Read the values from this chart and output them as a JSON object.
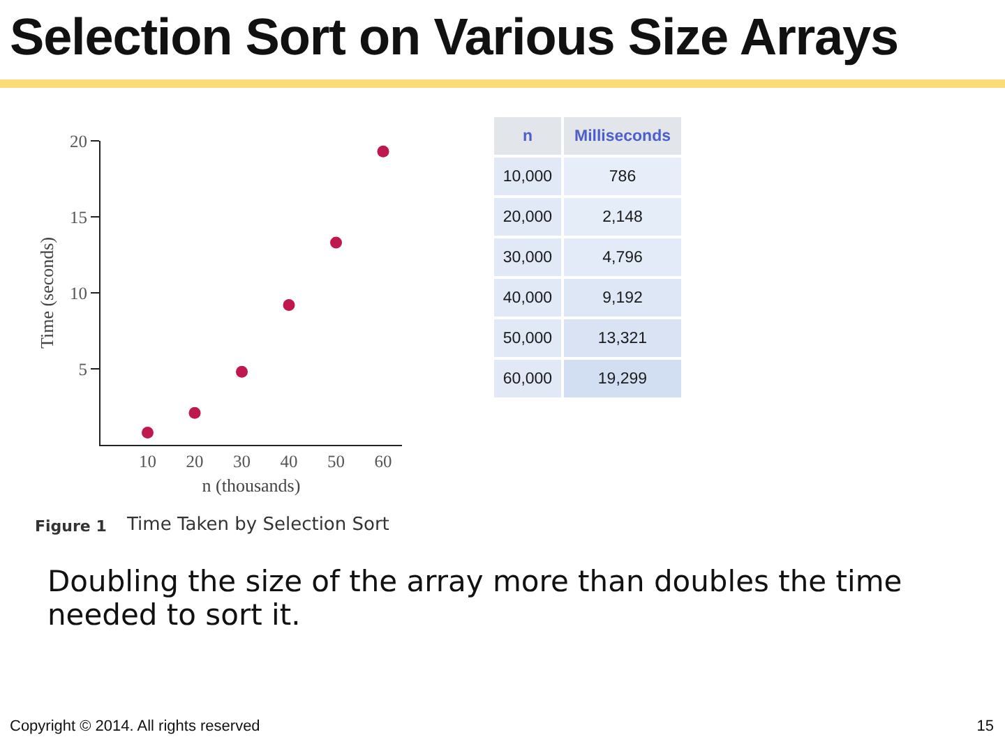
{
  "chart_data": [
    {
      "type": "scatter",
      "title": "Selection Sort on Various Size Arrays",
      "xlabel": "n (thousands)",
      "ylabel": "Time (seconds)",
      "x": [
        10,
        20,
        30,
        40,
        50,
        60
      ],
      "values": [
        0.8,
        2.1,
        4.8,
        9.2,
        13.3,
        19.3
      ],
      "color": "#c0184c",
      "xlim": [
        0,
        64
      ],
      "xticks": [
        10,
        20,
        30,
        40,
        50,
        60
      ],
      "ylim": [
        0,
        20
      ],
      "yticks": [
        5,
        10,
        15,
        20
      ],
      "marker": "circle",
      "annotations": [
        "Figure 1",
        "Time Taken by Selection Sort",
        "Doubling the size of the array more than doubles the time needed to sort it.",
        "Copyright © 2014. All rights reserved",
        "15"
      ]
    },
    {
      "type": "heatmap",
      "ylabel": "n",
      "categories": [
        "Milliseconds"
      ],
      "y_categories": [
        "10,000",
        "20,000",
        "30,000",
        "40,000",
        "50,000",
        "60,000"
      ],
      "cells": [
        [
          786
        ],
        [
          2148
        ],
        [
          4796
        ],
        [
          9192
        ],
        [
          13321
        ],
        [
          19299
        ]
      ],
      "cell_labels": [
        [
          "786"
        ],
        [
          "2,148"
        ],
        [
          "4,796"
        ],
        [
          "9,192"
        ],
        [
          "13,321"
        ],
        [
          "19,299"
        ]
      ]
    }
  ]
}
